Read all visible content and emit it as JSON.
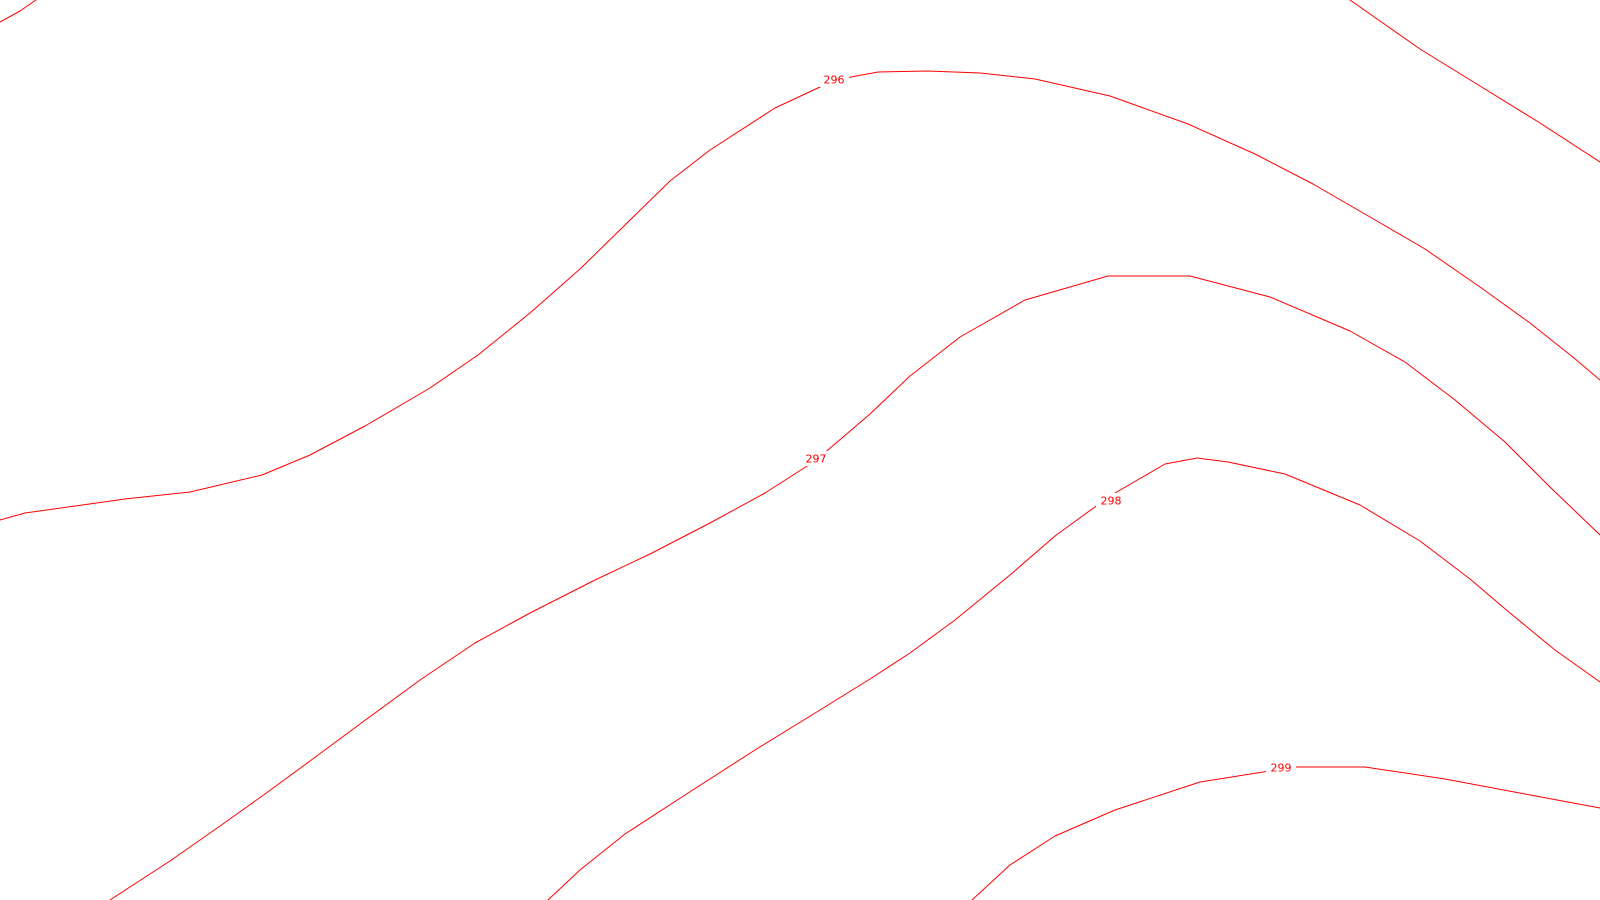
{
  "map": {
    "line_color": "#ff0000",
    "background": "#ffffff",
    "contours": [
      {
        "id": "unlabeled-top-left",
        "label": ""
      },
      {
        "id": "contour-296",
        "label": "296"
      },
      {
        "id": "unlabeled-top-right",
        "label": ""
      },
      {
        "id": "contour-297",
        "label": "297"
      },
      {
        "id": "contour-298",
        "label": "298"
      },
      {
        "id": "contour-299",
        "label": "299"
      }
    ]
  }
}
